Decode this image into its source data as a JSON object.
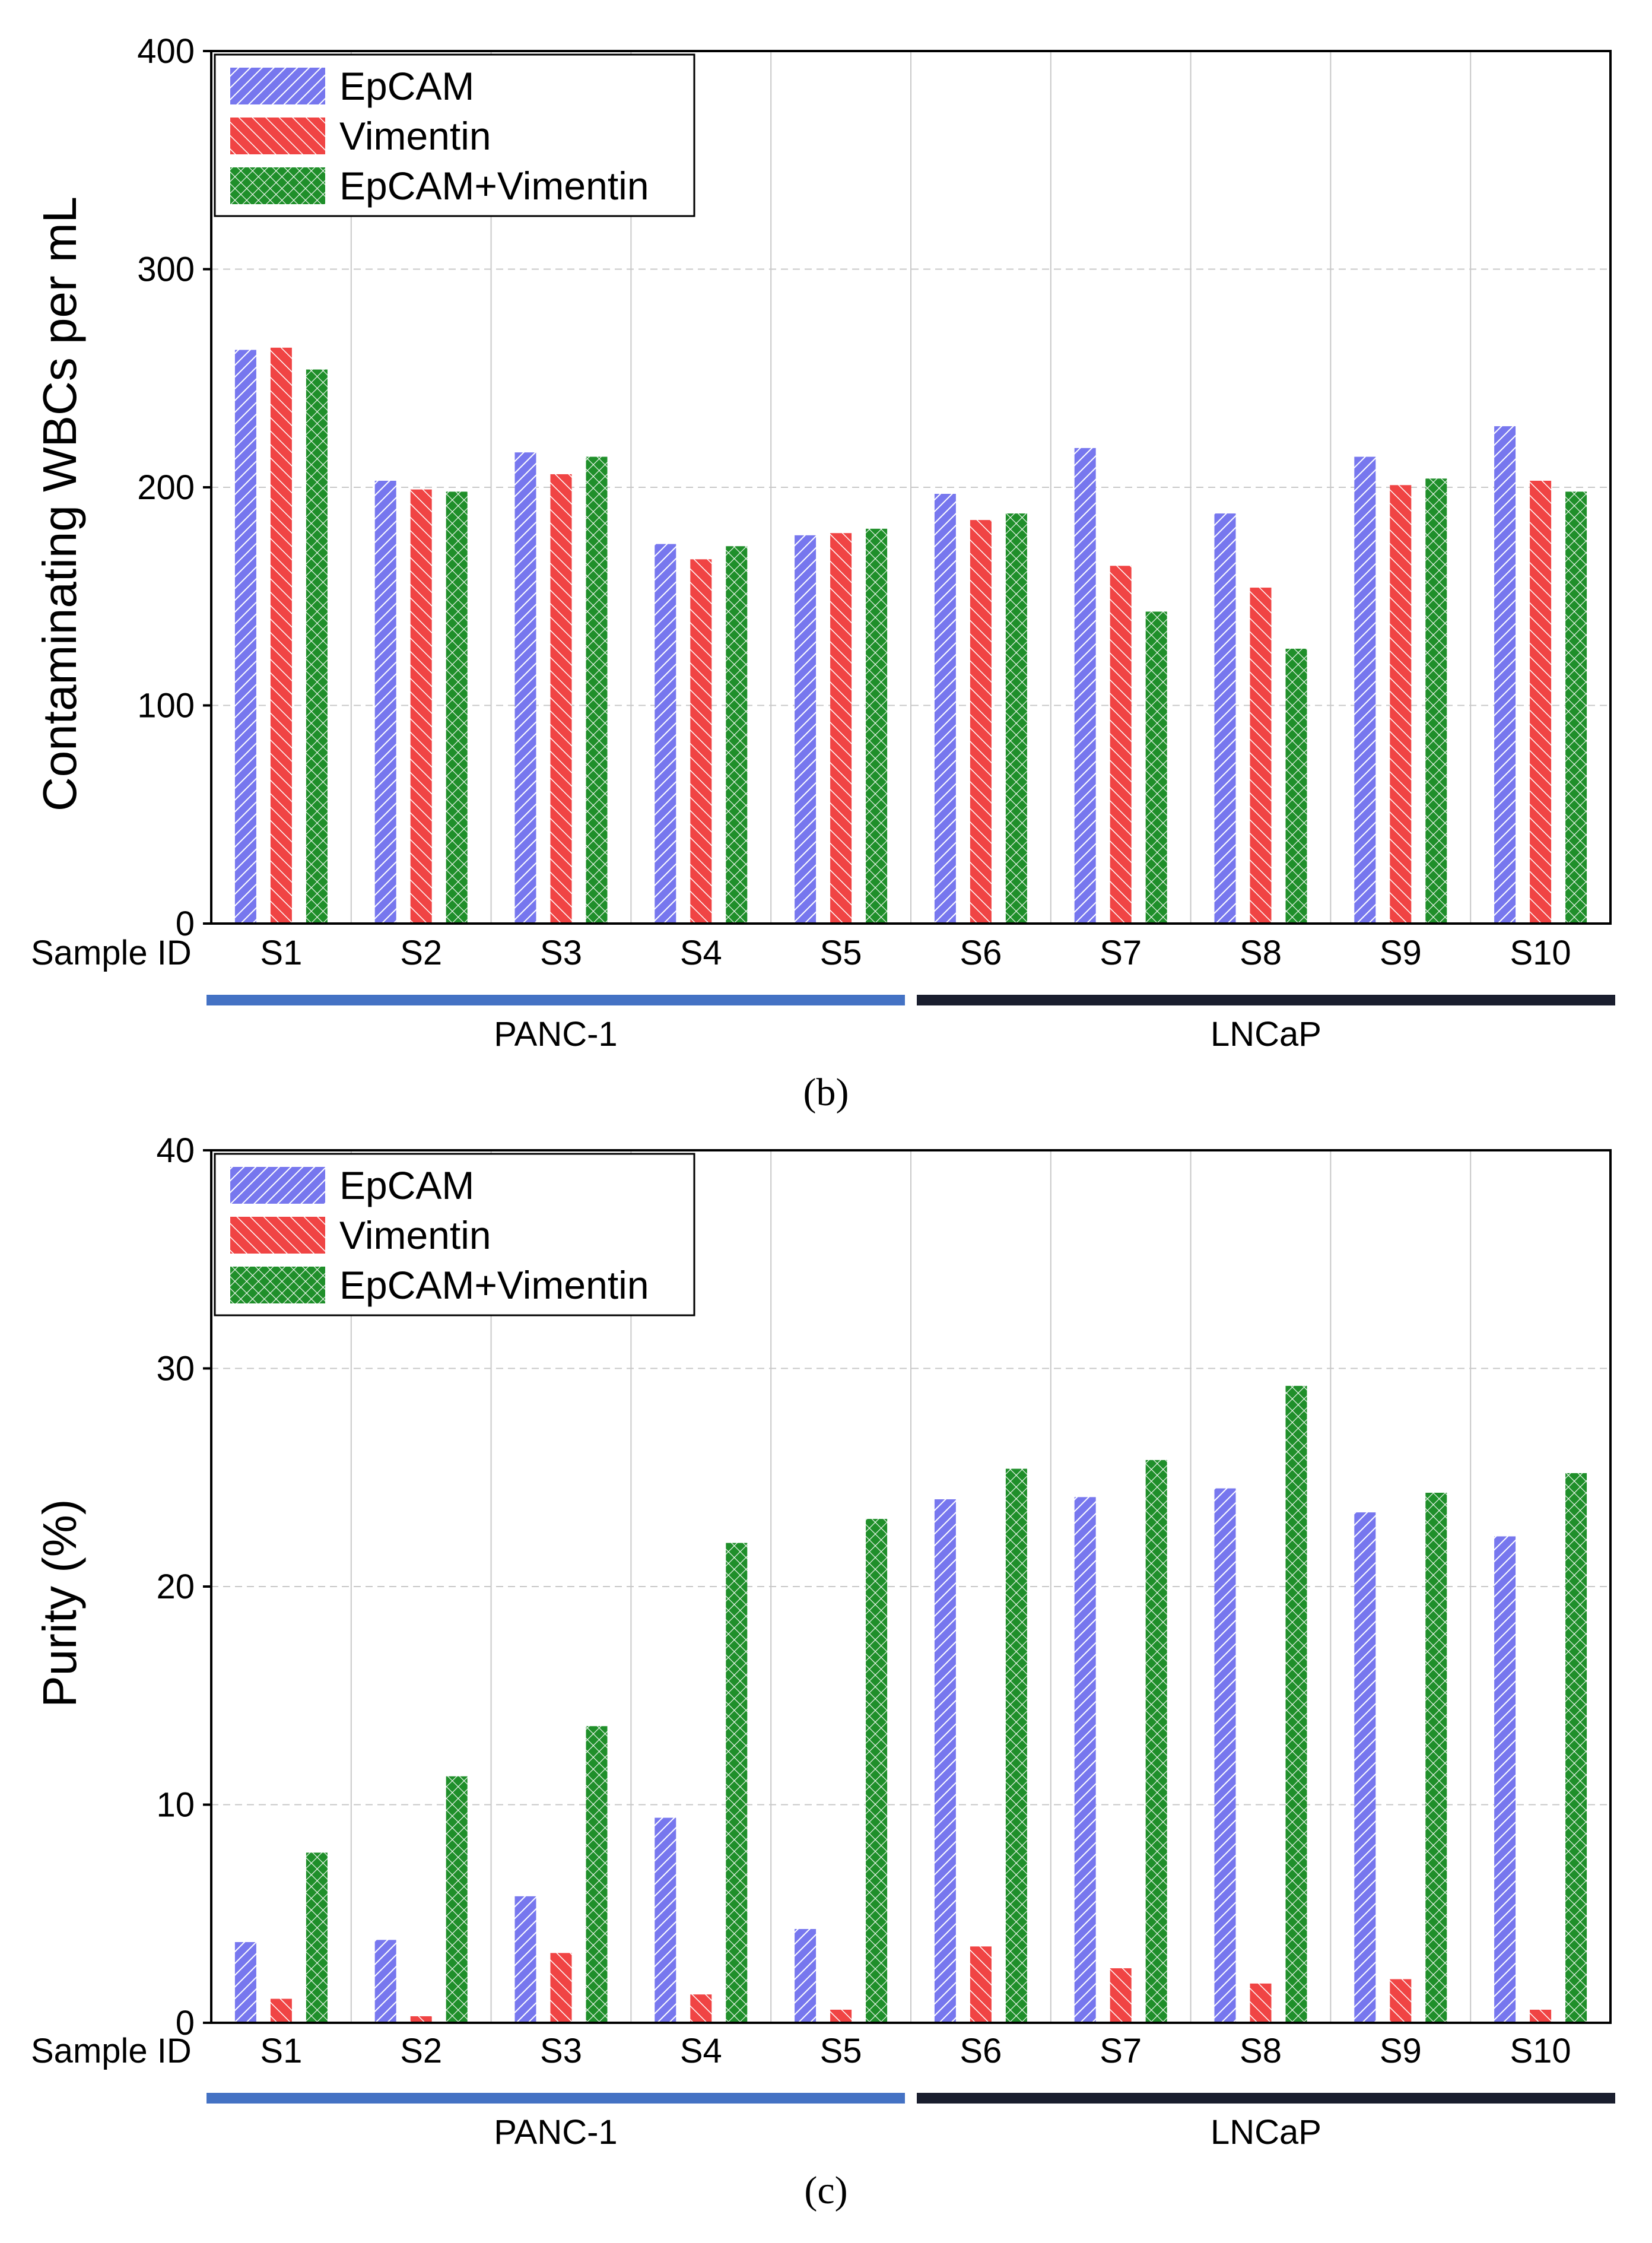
{
  "figure": {
    "sample_id_label": "Sample ID",
    "group_labels": [
      "PANC-1",
      "LNCaP"
    ],
    "colors": {
      "EpCAM": "#7777ee",
      "Vimentin": "#f04444",
      "EpCAM+Vimentin": "#1f8f2a",
      "panc_bar": "#4472c4",
      "lncap_bar": "#1a1e2e",
      "grid": "#c8c8c8"
    },
    "icons": {
      "EpCAM": "diagonal-hatch-up",
      "Vimentin": "diagonal-hatch-down",
      "EpCAM+Vimentin": "crosshatch"
    }
  },
  "chart_data": [
    {
      "type": "bar",
      "panel_label": "(b)",
      "title": "",
      "xlabel": "Sample ID",
      "ylabel": "Contaminating WBCs per mL",
      "ylim": [
        0,
        400
      ],
      "yticks": [
        0,
        100,
        200,
        300,
        400
      ],
      "grid": true,
      "legend": "top-left",
      "categories": [
        "S1",
        "S2",
        "S3",
        "S4",
        "S5",
        "S6",
        "S7",
        "S8",
        "S9",
        "S10"
      ],
      "groups": [
        {
          "name": "PANC-1",
          "categories": [
            "S1",
            "S2",
            "S3",
            "S4",
            "S5"
          ]
        },
        {
          "name": "LNCaP",
          "categories": [
            "S6",
            "S7",
            "S8",
            "S9",
            "S10"
          ]
        }
      ],
      "series": [
        {
          "name": "EpCAM",
          "values": [
            263,
            203,
            216,
            174,
            178,
            197,
            218,
            188,
            214,
            228
          ]
        },
        {
          "name": "Vimentin",
          "values": [
            264,
            199,
            206,
            167,
            179,
            185,
            164,
            154,
            201,
            203
          ]
        },
        {
          "name": "EpCAM+Vimentin",
          "values": [
            254,
            198,
            214,
            173,
            181,
            188,
            143,
            126,
            204,
            198
          ]
        }
      ]
    },
    {
      "type": "bar",
      "panel_label": "(c)",
      "title": "",
      "xlabel": "Sample ID",
      "ylabel": "Purity (%)",
      "ylim": [
        0,
        40
      ],
      "yticks": [
        0,
        10,
        20,
        30,
        40
      ],
      "grid": true,
      "legend": "top-left",
      "categories": [
        "S1",
        "S2",
        "S3",
        "S4",
        "S5",
        "S6",
        "S7",
        "S8",
        "S9",
        "S10"
      ],
      "groups": [
        {
          "name": "PANC-1",
          "categories": [
            "S1",
            "S2",
            "S3",
            "S4",
            "S5"
          ]
        },
        {
          "name": "LNCaP",
          "categories": [
            "S6",
            "S7",
            "S8",
            "S9",
            "S10"
          ]
        }
      ],
      "series": [
        {
          "name": "EpCAM",
          "values": [
            3.7,
            3.8,
            5.8,
            9.4,
            4.3,
            24.0,
            24.1,
            24.5,
            23.4,
            22.3
          ]
        },
        {
          "name": "Vimentin",
          "values": [
            1.1,
            0.3,
            3.2,
            1.3,
            0.6,
            3.5,
            2.5,
            1.8,
            2.0,
            0.6
          ]
        },
        {
          "name": "EpCAM+Vimentin",
          "values": [
            7.8,
            11.3,
            13.6,
            22.0,
            23.1,
            25.4,
            25.8,
            29.2,
            24.3,
            25.2
          ]
        }
      ]
    }
  ]
}
